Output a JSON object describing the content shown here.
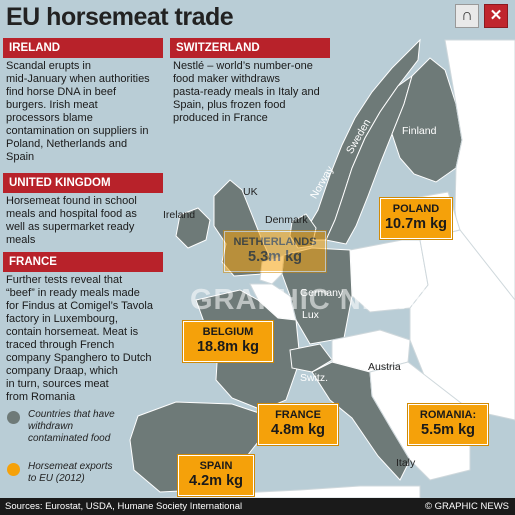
{
  "title": "EU horsemeat trade",
  "controls": [
    {
      "name": "magnet-icon",
      "glyph": "∩"
    },
    {
      "name": "close-icon",
      "glyph": "✕"
    }
  ],
  "sections": {
    "ireland": {
      "heading": "IRELAND",
      "text": [
        "Scandal erupts in",
        "mid-January when authorities",
        "find horse DNA in beef",
        "burgers. Irish meat",
        "processors blame",
        "contamination on suppliers in",
        "Poland, Netherlands and",
        "Spain"
      ]
    },
    "switzerland": {
      "heading": "SWITZERLAND",
      "text": [
        "Nestlé – world’s number-one",
        "food maker withdraws",
        "pasta-ready meals in Italy and",
        "Spain, plus frozen food",
        "produced in France"
      ]
    },
    "uk": {
      "heading": "UNITED KINGDOM",
      "text": [
        "Horsemeat found in school",
        "meals and hospital food as",
        "well as supermarket ready",
        "meals"
      ]
    },
    "france": {
      "heading": "FRANCE",
      "text": [
        "Further tests reveal that",
        "“beef” in ready meals made",
        "for Findus at Comigel’s Tavola",
        "factory in Luxembourg,",
        "contain horsemeat. Meat is",
        "traced through French",
        "company Spanghero to Dutch",
        "company Draap, which",
        "in turn, sources meat",
        "from Romania"
      ]
    }
  },
  "map_labels": [
    "Finland",
    "Sweden",
    "Norway",
    "UK",
    "Ireland",
    "Denmark",
    "Germany",
    "Lux",
    "Switz.",
    "Austria",
    "Italy"
  ],
  "exports": [
    {
      "country": "POLAND",
      "value": "10.7m kg"
    },
    {
      "country": "NETHERLANDS",
      "value": "5.3m kg"
    },
    {
      "country": "BELGIUM",
      "value": "18.8m kg"
    },
    {
      "country": "FRANCE",
      "value": "4.8m kg"
    },
    {
      "country": "ROMANIA:",
      "value": "5.5m kg"
    },
    {
      "country": "SPAIN",
      "value": "4.2m kg"
    }
  ],
  "legend": {
    "withdrawn": {
      "text": [
        "Countries that have",
        "withdrawn",
        "contaminated food"
      ],
      "color": "#6e7a78"
    },
    "exports": {
      "text": [
        "Horsemeat exports",
        "to EU (2012)"
      ],
      "color": "#f5a10a"
    }
  },
  "watermark": "GRAPHIC NEWS",
  "footer": {
    "sources": "Sources: Eurostat, USDA, Humane Society International",
    "credit": "© GRAPHIC NEWS"
  },
  "colors": {
    "accent_red": "#b8222a",
    "land_affected": "#6e7a78",
    "land_other": "#ffffff",
    "sea": "#b9cdd6",
    "export_orange": "#f5a10a"
  }
}
